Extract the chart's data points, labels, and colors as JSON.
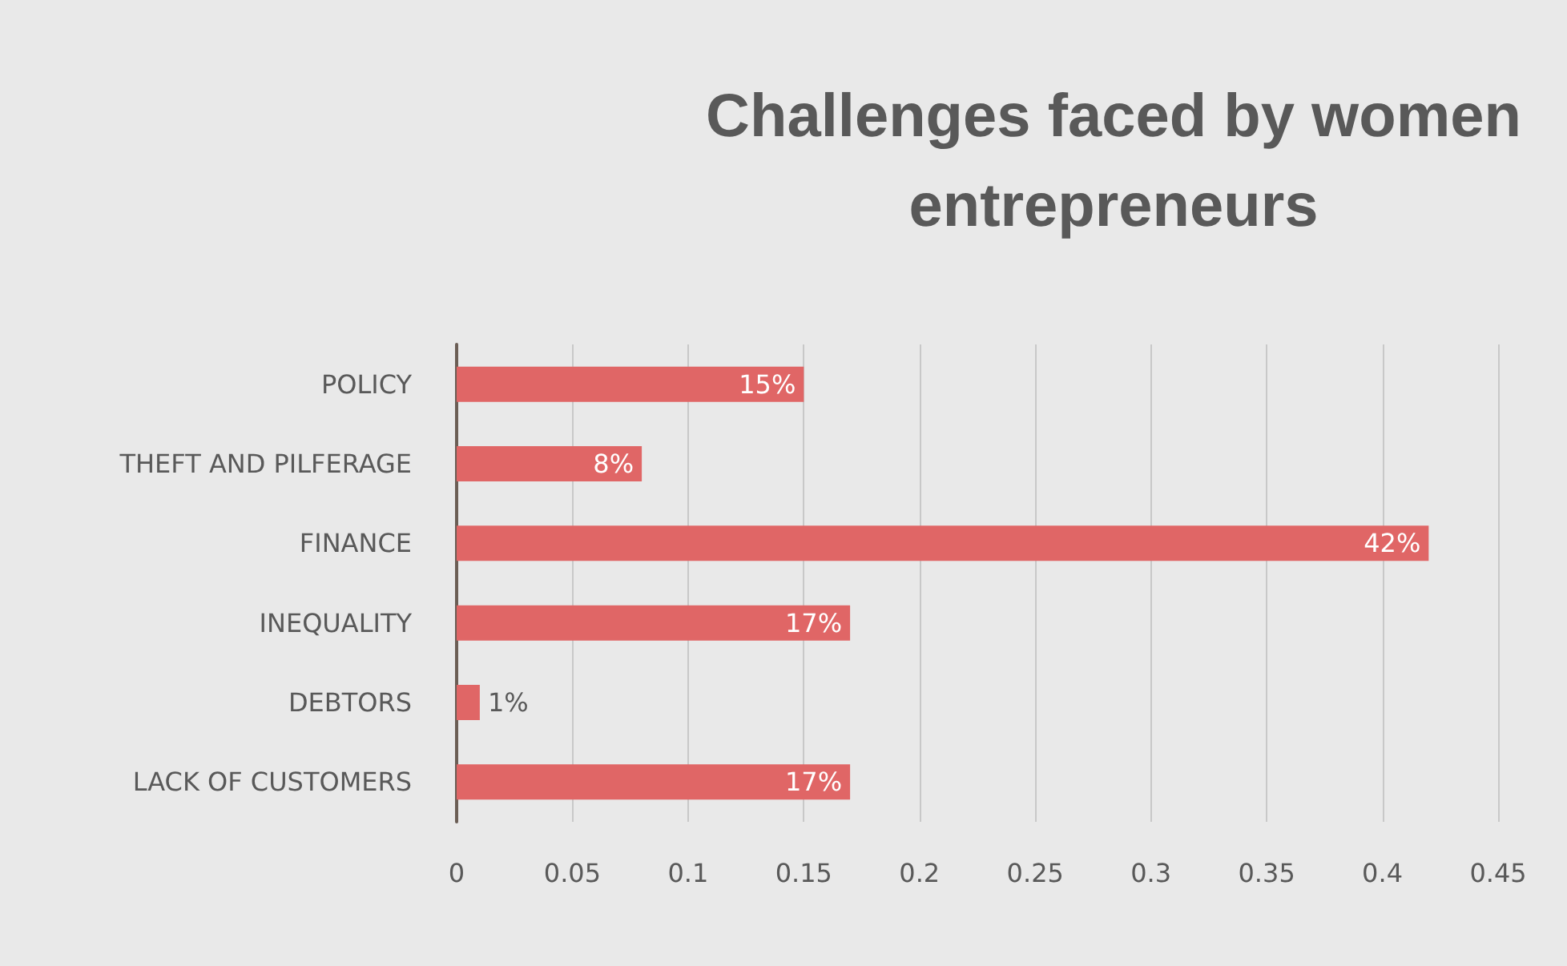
{
  "chart_data": {
    "type": "bar",
    "orientation": "horizontal",
    "title": "Challenges faced by women\nentrepreneurs",
    "categories": [
      "POLICY",
      "THEFT AND PILFERAGE",
      "FINANCE",
      "INEQUALITY",
      "DEBTORS",
      "LACK OF CUSTOMERS"
    ],
    "values": [
      0.15,
      0.08,
      0.42,
      0.17,
      0.01,
      0.17
    ],
    "value_labels": [
      "15%",
      "8%",
      "42%",
      "17%",
      "1%",
      "17%"
    ],
    "color": "#e06666",
    "xlim": [
      0,
      0.45
    ],
    "xticks": [
      0,
      0.05,
      0.1,
      0.15,
      0.2,
      0.25,
      0.3,
      0.35,
      0.4,
      0.45
    ],
    "grid": "x"
  }
}
